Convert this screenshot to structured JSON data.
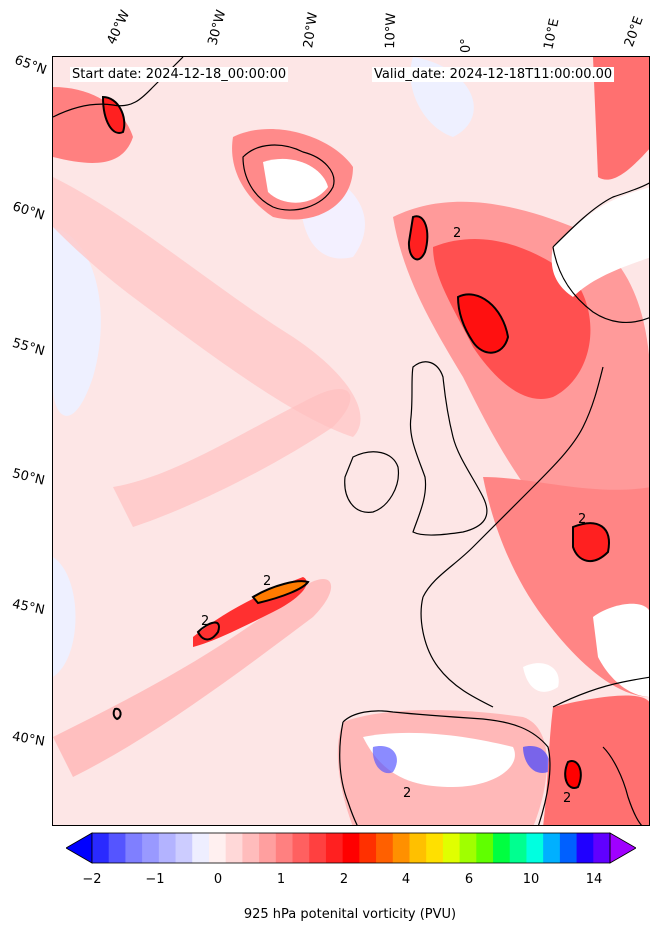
{
  "header": {
    "start_date": "Start date: 2024-12-18_00:00:00",
    "valid_date": "Valid_date: 2024-12-18T11:00:00.00"
  },
  "longitude_labels": [
    "40°W",
    "30°W",
    "20°W",
    "10°W",
    "0°",
    "10°E",
    "20°E"
  ],
  "latitude_labels": [
    "65°N",
    "60°N",
    "55°N",
    "50°N",
    "45°N",
    "40°N"
  ],
  "colorbar": {
    "ticks": [
      "−2",
      "−1",
      "0",
      "1",
      "2",
      "4",
      "6",
      "10",
      "14"
    ],
    "label": "925 hPa potenital vorticity (PVU)",
    "colors": [
      "#0000ff",
      "#2a2aff",
      "#5555ff",
      "#7f7fff",
      "#9999ff",
      "#b3b3ff",
      "#ccccff",
      "#eeeeff",
      "#fff0f0",
      "#ffd8d8",
      "#ffbcbc",
      "#ff9f9f",
      "#ff8080",
      "#ff6060",
      "#ff4040",
      "#ff2020",
      "#ff0000",
      "#ff3000",
      "#ff6000",
      "#ff9000",
      "#ffc000",
      "#ffe000",
      "#e0ff00",
      "#a0ff00",
      "#60ff00",
      "#00ff40",
      "#00ff90",
      "#00ffe0",
      "#00b0ff",
      "#0060ff",
      "#2000ff",
      "#6000ff",
      "#a000ff"
    ],
    "extend": "both"
  },
  "map": {
    "projection": "conic",
    "fill_variable": "925 hPa potential vorticity",
    "contour_label": "2",
    "coastline_color": "#000000"
  }
}
